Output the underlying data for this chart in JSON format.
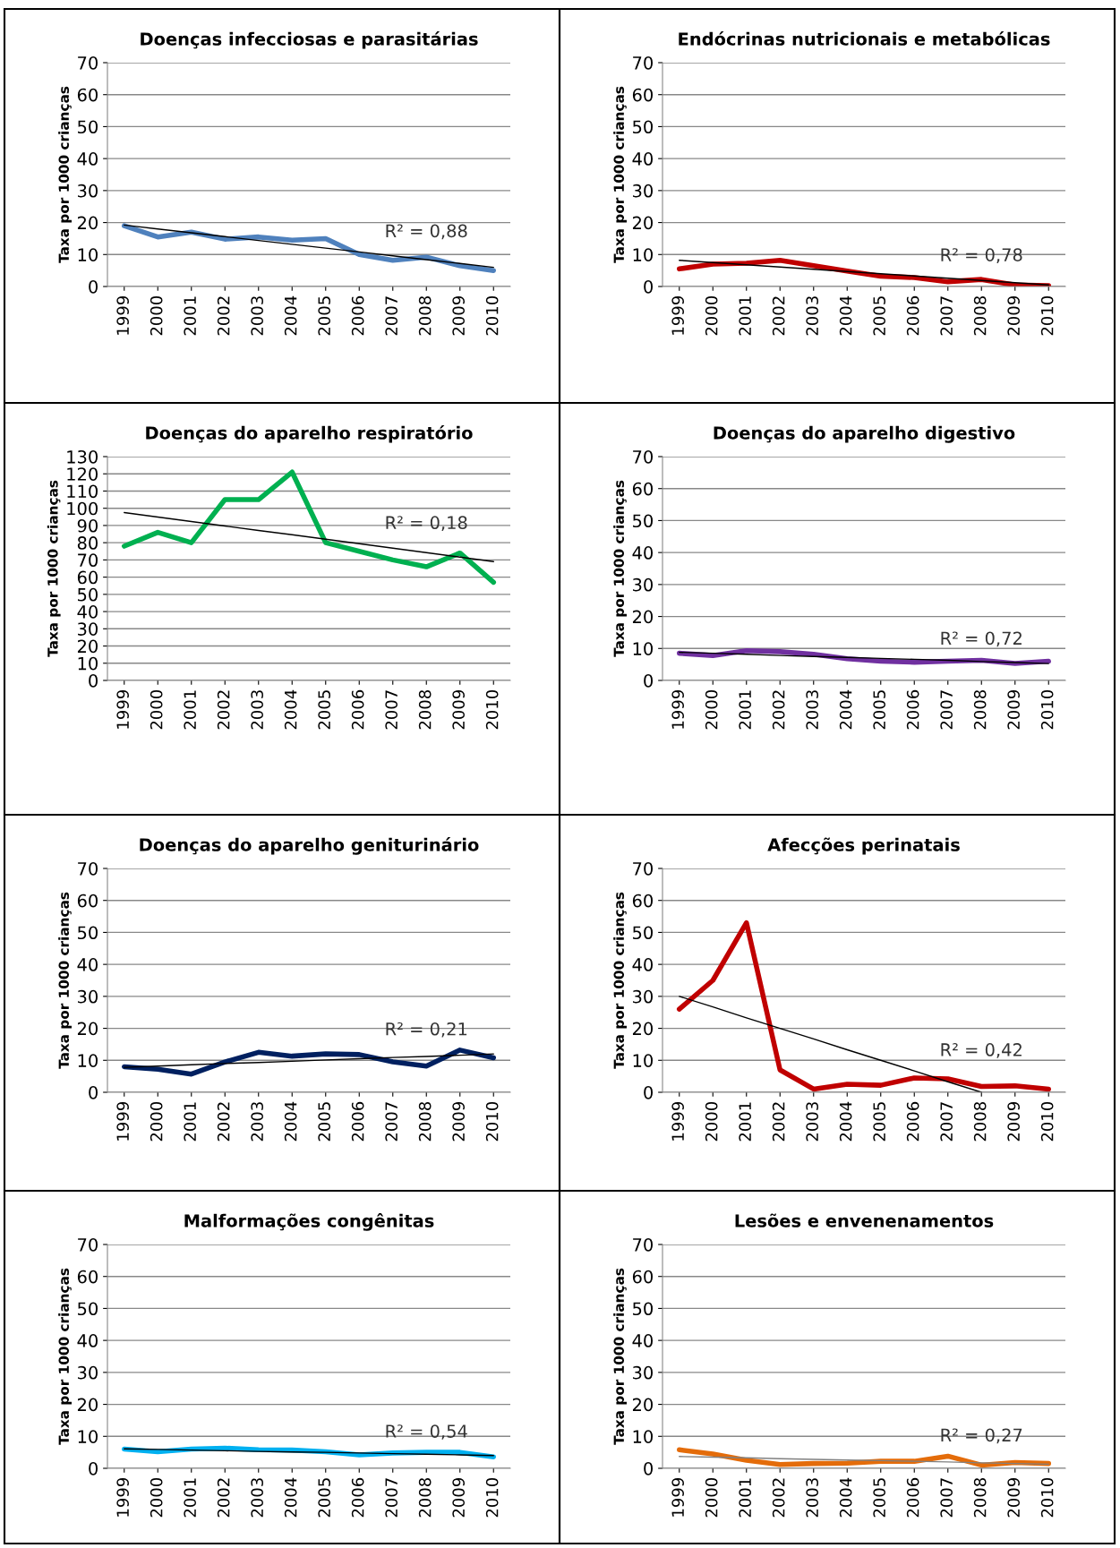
{
  "chart_data": [
    {
      "type": "line",
      "title": "Doenças infecciosas e parasitárias",
      "ylabel": "Taxa por 1000 crianças",
      "categories": [
        "1999",
        "2000",
        "2001",
        "2002",
        "2003",
        "2004",
        "2005",
        "2006",
        "2007",
        "2008",
        "2009",
        "2010"
      ],
      "ylim": [
        0,
        70
      ],
      "yticks": [
        0,
        10,
        20,
        30,
        40,
        50,
        60,
        70
      ],
      "grid": "y",
      "series": [
        {
          "color": "#4f81bd",
          "values": [
            19,
            15.5,
            17,
            14.8,
            15.5,
            14.5,
            15,
            10,
            8.2,
            9.2,
            6.5,
            5
          ]
        },
        {
          "color": "#000000",
          "values": [
            19.2,
            18,
            16.8,
            15.6,
            14.4,
            13.2,
            12,
            10.8,
            9.6,
            8.4,
            7.2,
            6
          ]
        }
      ],
      "annotations": [
        "R² = 0,88"
      ]
    },
    {
      "type": "line",
      "title": "Endócrinas nutricionais e metabólicas",
      "ylabel": "Taxa por 1000 crianças",
      "categories": [
        "1999",
        "2000",
        "2001",
        "2002",
        "2003",
        "2004",
        "2005",
        "2006",
        "2007",
        "2008",
        "2009",
        "2010"
      ],
      "ylim": [
        0,
        70
      ],
      "yticks": [
        0,
        10,
        20,
        30,
        40,
        50,
        60,
        70
      ],
      "grid": "y",
      "series": [
        {
          "color": "#c00000",
          "values": [
            5.5,
            7,
            7.3,
            8.2,
            6.5,
            4.8,
            3.2,
            2.8,
            1.5,
            2.2,
            0.5,
            0.3
          ]
        },
        {
          "color": "#000000",
          "values": [
            8.2,
            7.5,
            6.8,
            6.1,
            5.4,
            4.7,
            4.0,
            3.3,
            2.6,
            1.9,
            1.2,
            0.5
          ]
        }
      ],
      "annotations": [
        "R² = 0,78"
      ]
    },
    {
      "type": "line",
      "title": "Doenças do aparelho respiratório",
      "ylabel": "Taxa por 1000 crianças",
      "categories": [
        "1999",
        "2000",
        "2001",
        "2002",
        "2003",
        "2004",
        "2005",
        "2006",
        "2007",
        "2008",
        "2009",
        "2010"
      ],
      "ylim": [
        0,
        130
      ],
      "yticks": [
        0,
        10,
        20,
        30,
        40,
        50,
        60,
        70,
        80,
        90,
        100,
        110,
        120,
        130
      ],
      "grid": "y",
      "series": [
        {
          "color": "#00b050",
          "values": [
            78,
            86,
            80,
            105,
            105,
            121,
            80,
            75,
            70,
            66,
            74,
            57
          ]
        },
        {
          "color": "#000000",
          "values": [
            97.5,
            94.9,
            92.3,
            89.7,
            87.1,
            84.6,
            82,
            79.4,
            76.8,
            74.2,
            71.6,
            69
          ]
        }
      ],
      "annotations": [
        "R² = 0,18"
      ]
    },
    {
      "type": "line",
      "title": "Doenças do aparelho digestivo",
      "ylabel": "Taxa por 1000 crianças",
      "categories": [
        "1999",
        "2000",
        "2001",
        "2002",
        "2003",
        "2004",
        "2005",
        "2006",
        "2007",
        "2008",
        "2009",
        "2010"
      ],
      "ylim": [
        0,
        70
      ],
      "yticks": [
        0,
        10,
        20,
        30,
        40,
        50,
        60,
        70
      ],
      "grid": "y",
      "series": [
        {
          "color": "#7030a0",
          "values": [
            8.5,
            7.8,
            9.3,
            9,
            8.2,
            6.8,
            6,
            5.7,
            6,
            6.3,
            5.3,
            6
          ]
        },
        {
          "color": "#000000",
          "values": [
            8.8,
            8.5,
            8.2,
            7.8,
            7.5,
            7.2,
            6.9,
            6.6,
            6.3,
            5.9,
            5.6,
            5.3
          ]
        }
      ],
      "annotations": [
        "R² = 0,72"
      ]
    },
    {
      "type": "line",
      "title": "Doenças do aparelho geniturinário",
      "ylabel": "Taxa por 1000 crianças",
      "categories": [
        "1999",
        "2000",
        "2001",
        "2002",
        "2003",
        "2004",
        "2005",
        "2006",
        "2007",
        "2008",
        "2009",
        "2010"
      ],
      "ylim": [
        0,
        70
      ],
      "yticks": [
        0,
        10,
        20,
        30,
        40,
        50,
        60,
        70
      ],
      "grid": "y",
      "series": [
        {
          "color": "#002060",
          "values": [
            8,
            7.2,
            5.7,
            9.5,
            12.5,
            11.3,
            12,
            11.8,
            9.5,
            8.2,
            13.2,
            10.8
          ]
        },
        {
          "color": "#000000",
          "values": [
            7.8,
            8.2,
            8.6,
            9,
            9.3,
            9.7,
            10.1,
            10.5,
            10.9,
            11.2,
            11.6,
            12
          ]
        }
      ],
      "annotations": [
        "R² = 0,21"
      ]
    },
    {
      "type": "line",
      "title": "Afecções perinatais",
      "ylabel": "Taxa por 1000 crianças",
      "categories": [
        "1999",
        "2000",
        "2001",
        "2002",
        "2003",
        "2004",
        "2005",
        "2006",
        "2007",
        "2008",
        "2009",
        "2010"
      ],
      "ylim": [
        0,
        70
      ],
      "yticks": [
        0,
        10,
        20,
        30,
        40,
        50,
        60,
        70
      ],
      "grid": "y",
      "series": [
        {
          "color": "#c00000",
          "values": [
            26,
            35,
            53,
            7,
            1,
            2.5,
            2.2,
            4.5,
            4.2,
            1.8,
            2,
            1
          ]
        },
        {
          "color": "#000000",
          "values": [
            30,
            26.7,
            23.3,
            20,
            16.7,
            13.3,
            10,
            6.7,
            3.3,
            0,
            null,
            null
          ]
        }
      ],
      "annotations": [
        "R² = 0,42"
      ]
    },
    {
      "type": "line",
      "title": "Malformações congênitas",
      "ylabel": "Taxa por 1000 crianças",
      "categories": [
        "1999",
        "2000",
        "2001",
        "2002",
        "2003",
        "2004",
        "2005",
        "2006",
        "2007",
        "2008",
        "2009",
        "2010"
      ],
      "ylim": [
        0,
        70
      ],
      "yticks": [
        0,
        10,
        20,
        30,
        40,
        50,
        60,
        70
      ],
      "grid": "y",
      "series": [
        {
          "color": "#00b0f0",
          "values": [
            6,
            5.2,
            6,
            6.3,
            5.8,
            5.7,
            5.2,
            4.2,
            4.8,
            5,
            5,
            3.6
          ]
        },
        {
          "color": "#000000",
          "values": [
            6.1,
            5.9,
            5.7,
            5.5,
            5.3,
            5.1,
            5,
            4.8,
            4.6,
            4.4,
            4.2,
            4
          ]
        }
      ],
      "annotations": [
        "R² = 0,54"
      ]
    },
    {
      "type": "line",
      "title": "Lesões e envenenamentos",
      "ylabel": "Taxa por 1000 crianças",
      "categories": [
        "1999",
        "2000",
        "2001",
        "2002",
        "2003",
        "2004",
        "2005",
        "2006",
        "2007",
        "2008",
        "2009",
        "2010"
      ],
      "ylim": [
        0,
        70
      ],
      "yticks": [
        0,
        10,
        20,
        30,
        40,
        50,
        60,
        70
      ],
      "grid": "y",
      "series": [
        {
          "color": "#e46c0a",
          "values": [
            5.8,
            4.5,
            2.5,
            1.2,
            1.5,
            1.6,
            2.2,
            2.2,
            3.8,
            1,
            1.8,
            1.5
          ]
        },
        {
          "color": "#808080",
          "values": [
            3.7,
            3.5,
            3.3,
            3.0,
            2.8,
            2.6,
            2.4,
            2.2,
            2.0,
            1.7,
            1.5,
            1.3
          ]
        }
      ],
      "annotations": [
        "R² = 0,27"
      ]
    }
  ]
}
